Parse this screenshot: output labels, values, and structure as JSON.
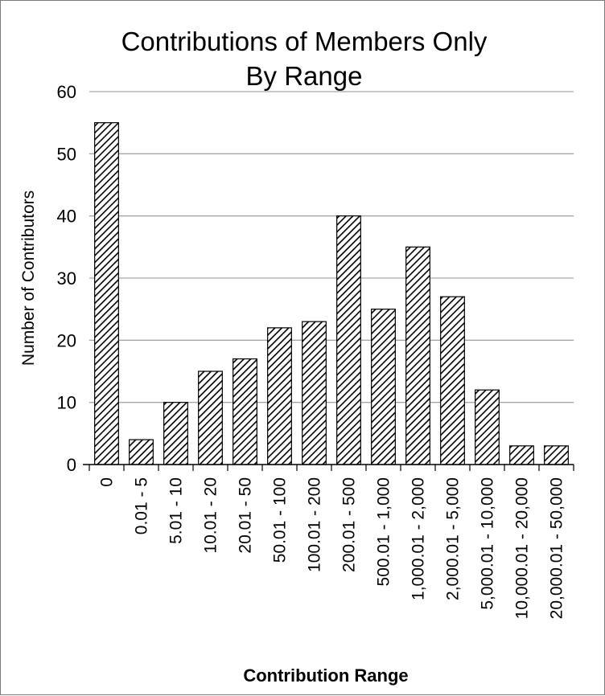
{
  "chart_data": {
    "type": "bar",
    "title": [
      "Contributions of Members Only",
      "By Range"
    ],
    "xlabel": "Contribution Range",
    "ylabel": "Number of Contributors",
    "ylim": [
      0,
      60
    ],
    "yticks": [
      0,
      10,
      20,
      30,
      40,
      50,
      60
    ],
    "grid": true,
    "legend": "none",
    "bar_fill": "diagonal-hatch",
    "bar_color": "#000000",
    "grid_color": "#a6a6a6",
    "categories": [
      "0",
      "0.01 - 5",
      "5.01 - 10",
      "10.01 - 20",
      "20.01 - 50",
      "50.01 - 100",
      "100.01 - 200",
      "200.01 - 500",
      "500.01 - 1,000",
      "1,000.01 - 2,000",
      "2,000.01 - 5,000",
      "5,000.01 - 10,000",
      "10,000.01 - 20,000",
      "20,000.01 - 50,000"
    ],
    "values": [
      55,
      4,
      10,
      15,
      17,
      22,
      23,
      40,
      25,
      35,
      27,
      12,
      3,
      3
    ]
  }
}
